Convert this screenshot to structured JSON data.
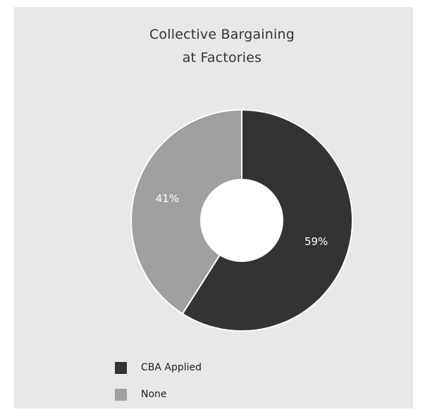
{
  "chart_data": {
    "type": "pie",
    "title": "Collective Bargaining at Factories",
    "title_lines": [
      "Collective Bargaining",
      "at Factories"
    ],
    "slices": [
      {
        "name": "CBA Applied",
        "value": 59,
        "label": "59%",
        "color": "#333333"
      },
      {
        "name": "None",
        "value": 41,
        "label": "41%",
        "color": "#a0a0a0"
      }
    ],
    "donut": true,
    "legend_position": "bottom-left"
  },
  "colors": {
    "panel_background": "#e8e8e8",
    "slice_separator": "#ffffff",
    "hole": "#ffffff",
    "label_text": "#ffffff"
  }
}
